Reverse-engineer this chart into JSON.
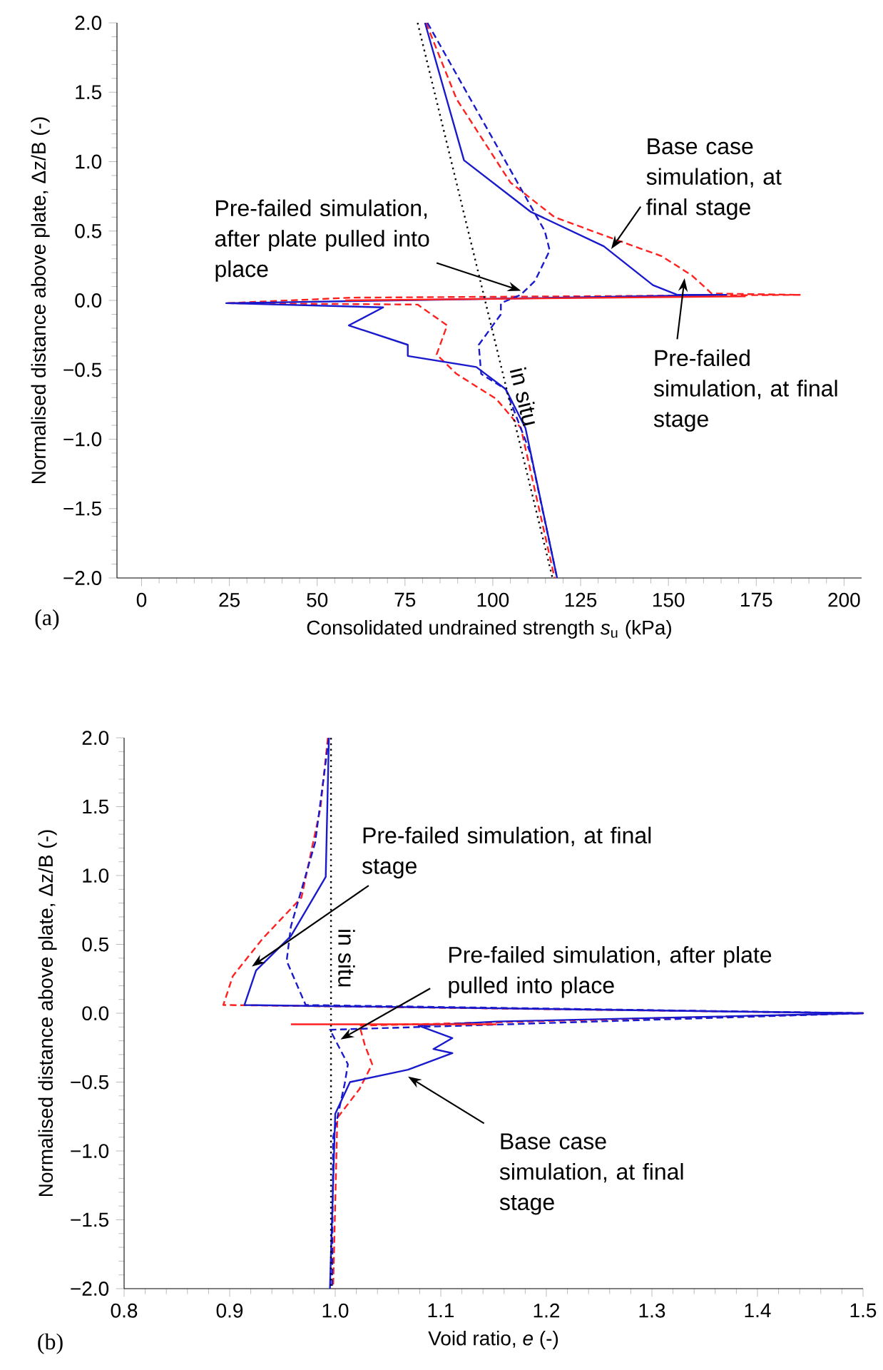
{
  "chart_data": [
    {
      "type": "line",
      "xlabel": "Consolidated undrained strength *s*$_{u}$ (kPa)",
      "ylabel": "Normalised distance above plate, Δz/B (-)",
      "xlim": [
        -7,
        205
      ],
      "ylim": [
        -2,
        2
      ],
      "xticks": [
        0,
        25,
        50,
        75,
        100,
        125,
        150,
        175,
        200
      ],
      "yticks": [
        {
          "value": -2,
          "label": "−2.0"
        },
        {
          "value": -1.5,
          "label": "−1.5"
        },
        {
          "value": -1,
          "label": "−1.0"
        },
        {
          "value": -0.5,
          "label": "−0.5"
        },
        {
          "value": 0,
          "label": "0.0"
        },
        {
          "value": 0.5,
          "label": "0.5"
        },
        {
          "value": 1,
          "label": "1.0"
        },
        {
          "value": 1.5,
          "label": "1.5"
        },
        {
          "value": 2,
          "label": "2.0"
        }
      ],
      "series": [
        {
          "color": "#ff2020",
          "line_style": "dashed",
          "x": [
            81,
            89.7,
            105,
            117.6,
            135.8,
            148,
            156.7,
            162.3,
            187.4,
            60,
            24,
            78.6,
            87,
            84,
            89.7,
            101,
            108,
            117.6
          ],
          "values": [
            2,
            1.45,
            0.85,
            0.6,
            0.43,
            0.32,
            0.18,
            0.05,
            0.04,
            0.02,
            -0.02,
            -0.03,
            -0.18,
            -0.39,
            -0.53,
            -0.71,
            -0.92,
            -2
          ]
        },
        {
          "color": "#1a1acd",
          "line_style": "solid",
          "x": [
            80.7,
            91.8,
            110.7,
            131.6,
            145.6,
            152.5,
            166.5,
            24.1,
            68.8,
            59,
            75.8,
            75.8,
            95.3,
            103.7,
            109.3,
            118.3
          ],
          "values": [
            2,
            1.01,
            0.64,
            0.39,
            0.11,
            0.04,
            0.04,
            -0.02,
            -0.05,
            -0.18,
            -0.32,
            -0.4,
            -0.48,
            -0.64,
            -0.92,
            -2
          ]
        },
        {
          "color": "#1a1acd",
          "line_style": "dashed",
          "x": [
            81.4,
            114.8,
            116.2,
            112,
            107.9,
            102.3,
            102.3,
            96,
            96.7,
            103.7,
            110.7,
            118.3
          ],
          "values": [
            2,
            0.5,
            0.36,
            0.14,
            0.04,
            -0.02,
            -0.1,
            -0.32,
            -0.53,
            -0.64,
            -1.1,
            -2
          ]
        },
        {
          "color": "#ff2020",
          "line_style": "solid",
          "x": [
            58,
            172
          ],
          "values": [
            0.0,
            0.03
          ]
        },
        {
          "name": "in situ",
          "color": "#000000",
          "line_style": "dotted",
          "x": [
            78.6,
            117
          ],
          "values": [
            2,
            -2
          ]
        }
      ],
      "annotations": [
        {
          "text": "Base case simulation, at final stage",
          "x": 133.7,
          "y": 0.37
        },
        {
          "text": "Pre-failed simulation, at final stage",
          "x": 154.6,
          "y": 0.16
        },
        {
          "text": "Pre-failed simulation, after plate pulled into place",
          "x": 108,
          "y": 0.07
        },
        "(a)"
      ]
    },
    {
      "type": "line",
      "xlabel": "Void ratio, *e* (-)",
      "ylabel": "Normalised distance above plate, Δz/B (-)",
      "xlim": [
        0.8,
        1.5
      ],
      "ylim": [
        -2,
        2
      ],
      "xticks": [
        0.8,
        0.9,
        {
          "value": 1.0,
          "label": "1.0"
        },
        1.1,
        1.2,
        1.3,
        1.4,
        1.5
      ],
      "yticks": [
        {
          "value": -2,
          "label": "−2.0"
        },
        {
          "value": -1.5,
          "label": "−1.5"
        },
        {
          "value": -1,
          "label": "−1.0"
        },
        {
          "value": -0.5,
          "label": "−0.5"
        },
        {
          "value": 0,
          "label": "0.0"
        },
        {
          "value": 0.5,
          "label": "0.5"
        },
        {
          "value": 1,
          "label": "1.0"
        },
        {
          "value": 1.5,
          "label": "1.5"
        },
        {
          "value": 2,
          "label": "2.0"
        }
      ],
      "series": [
        {
          "color": "#ff2020",
          "line_style": "dashed",
          "x": [
            0.993,
            0.986,
            0.968,
            0.931,
            0.903,
            0.894,
            1.5,
            1.023,
            1.028,
            1.035,
            1.023,
            1.002,
            0.998
          ],
          "values": [
            2,
            1.49,
            0.84,
            0.54,
            0.27,
            0.06,
            0.0,
            -0.09,
            -0.23,
            -0.37,
            -0.55,
            -0.76,
            -2
          ]
        },
        {
          "color": "#1a1acd",
          "line_style": "solid",
          "x": [
            0.994,
            0.991,
            0.958,
            0.925,
            0.914,
            1.5,
            1.153,
            1.079,
            1.111,
            1.093,
            1.111,
            1.069,
            1.014,
            1.0,
            0.995
          ],
          "values": [
            2,
            0.99,
            0.56,
            0.31,
            0.06,
            0.0,
            -0.06,
            -0.09,
            -0.18,
            -0.26,
            -0.29,
            -0.41,
            -0.5,
            -0.73,
            -2
          ]
        },
        {
          "color": "#1a1acd",
          "line_style": "dashed",
          "x": [
            0.994,
            0.981,
            0.958,
            0.954,
            0.972,
            1.5,
            0.995,
            1.012,
            1.009,
            0.998,
            0.997
          ],
          "values": [
            2,
            1.24,
            0.63,
            0.38,
            0.06,
            0.0,
            -0.12,
            -0.37,
            -0.51,
            -0.9,
            -2
          ]
        },
        {
          "color": "#ff2020",
          "line_style": "solid",
          "x": [
            0.958,
            1.153
          ],
          "values": [
            -0.08,
            -0.08
          ]
        },
        {
          "name": "in situ",
          "color": "#000000",
          "line_style": "dotted",
          "x": [
            0.996,
            0.996
          ],
          "values": [
            2,
            -2
          ]
        }
      ],
      "annotations": [
        {
          "text": "Pre-failed simulation, at final stage",
          "x": 0.921,
          "y": 0.34
        },
        {
          "text": "Pre-failed simulation, after plate pulled into place",
          "x": 1.005,
          "y": -0.19
        },
        {
          "text": "Base case simulation, at final stage",
          "x": 1.069,
          "y": -0.46
        },
        "(b)"
      ]
    }
  ]
}
